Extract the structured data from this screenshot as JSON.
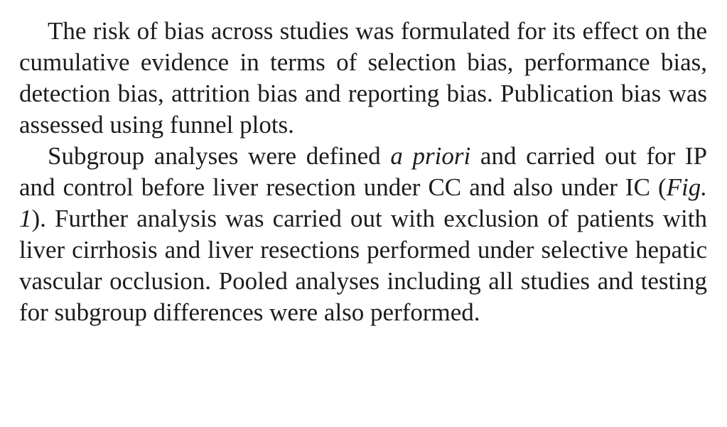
{
  "paragraphs": [
    {
      "text": "The risk of bias across studies was formulated for its effect on the cumulative evidence in terms of selection bias, performance bias, detection bias, attrition bias and report­ing bias. Publication bias was assessed using funnel plots."
    },
    {
      "part1": "Subgroup analyses were defined ",
      "italic1": "a priori",
      "part2": " and carried out for IP and control before liver resection under CC and also under IC (",
      "italic2": "Fig. 1",
      "part3": "). Further analysis was carried out with exclusion of patients with liver cirrhosis and liver resections performed under selective hepatic vascular occlusion. Pooled analyses including all studies and testing for subgroup differences were also performed."
    }
  ]
}
